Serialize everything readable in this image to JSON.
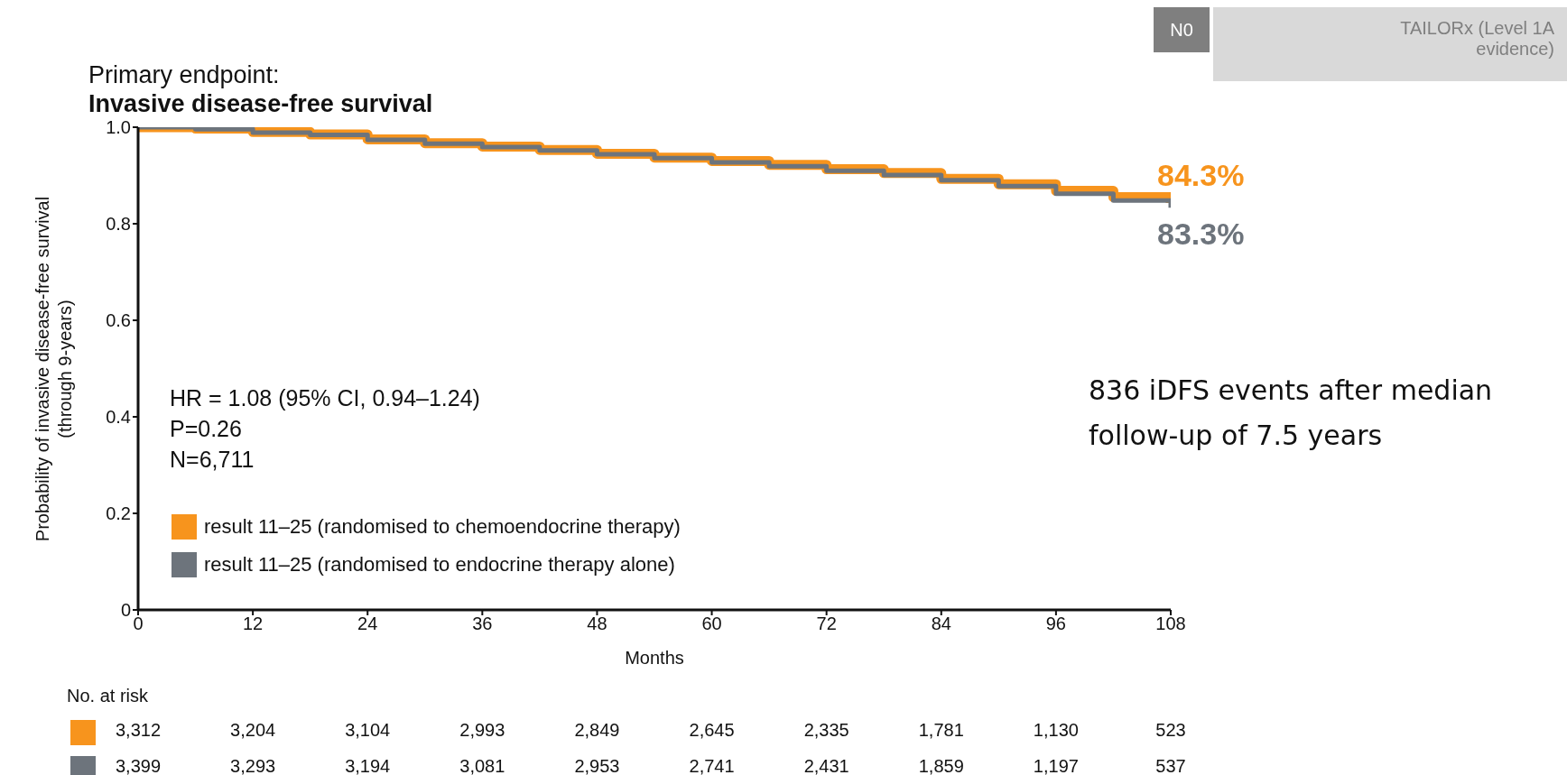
{
  "chart_data": {
    "type": "step",
    "title": "Primary endpoint:",
    "subtitle": "Invasive disease-free survival",
    "xlabel": "Months",
    "ylabel": "Probability of invasive disease-free survival\n(through 9-years)",
    "x": [
      0,
      6,
      12,
      18,
      24,
      30,
      36,
      42,
      48,
      54,
      60,
      66,
      72,
      78,
      84,
      90,
      96,
      102,
      108
    ],
    "series": [
      {
        "name": "result 11–25 (randomised to chemoendocrine therapy)",
        "color": "#f7941d",
        "values": [
          1,
          0.997,
          0.99,
          0.985,
          0.975,
          0.967,
          0.96,
          0.953,
          0.945,
          0.937,
          0.93,
          0.922,
          0.913,
          0.905,
          0.893,
          0.882,
          0.868,
          0.855,
          0.843
        ]
      },
      {
        "name": "result 11–25 (randomised to endocrine therapy alone)",
        "color": "#6d747c",
        "values": [
          1,
          0.996,
          0.989,
          0.984,
          0.974,
          0.966,
          0.959,
          0.952,
          0.944,
          0.936,
          0.927,
          0.919,
          0.91,
          0.901,
          0.89,
          0.878,
          0.862,
          0.848,
          0.833
        ]
      }
    ],
    "xlim": [
      0,
      108
    ],
    "xticks": [
      0,
      12,
      24,
      36,
      48,
      60,
      72,
      84,
      96,
      108
    ],
    "ylim": [
      0,
      1
    ],
    "yticks": [
      0,
      0.2,
      0.4,
      0.6,
      0.8,
      {
        "value": 1,
        "label": "1.0"
      }
    ],
    "legend": "bottom left",
    "marker": "none",
    "line_style": "solid",
    "annotations": [
      "HR = 1.08 (95% CI, 0.94–1.24)",
      "P=0.26",
      "N=6,711",
      "836 iDFS events after median follow-up of 7.5 years",
      {
        "text": "84.3%",
        "x": 108,
        "y": 0.843
      },
      {
        "text": "83.3%",
        "x": 108,
        "y": 0.833
      },
      "N0",
      "TAILORx (Level 1A evidence)",
      "No. at risk",
      "3,312",
      "3,204",
      "3,104",
      "2,993",
      "2,849",
      "2,645",
      "2,335",
      "1,781",
      "1,130",
      "523",
      "3,399",
      "3,293",
      "3,194",
      "3,081",
      "2,953",
      "2,741",
      "2,431",
      "1,859",
      "1,197",
      "537"
    ]
  }
}
